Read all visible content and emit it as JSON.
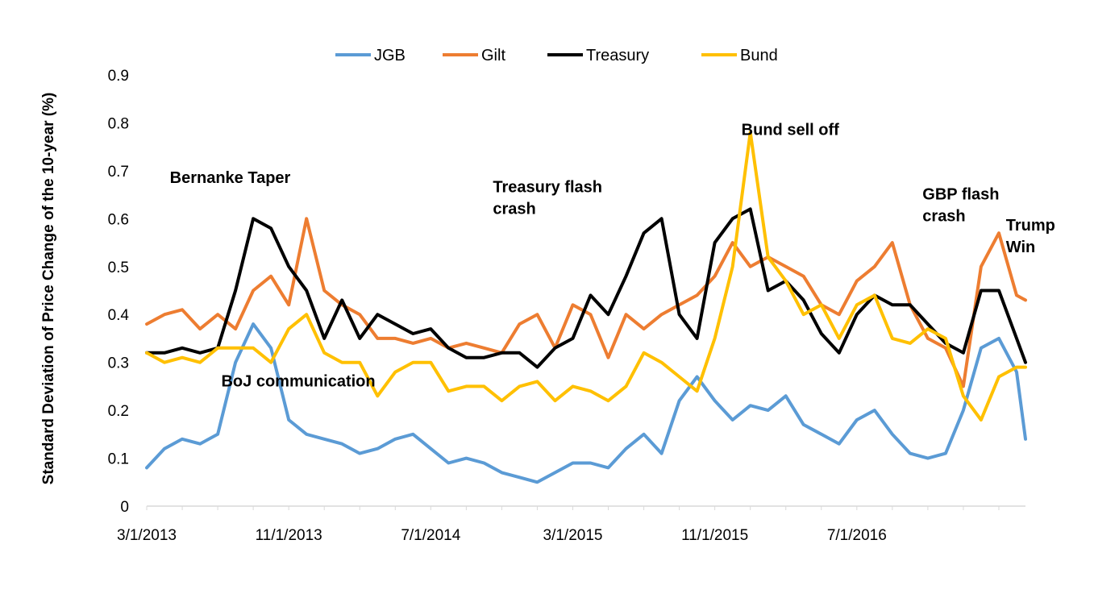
{
  "chart_data": {
    "type": "line",
    "title": "",
    "xlabel": "",
    "ylabel": "Standard Deviation of Price Change of the 10-year (%)",
    "ylim": [
      0,
      0.9
    ],
    "yticks": [
      0,
      0.1,
      0.2,
      0.3,
      0.4,
      0.5,
      0.6,
      0.7,
      0.8,
      0.9
    ],
    "ytick_labels": [
      "0",
      "0.1",
      "0.2",
      "0.3",
      "0.4",
      "0.5",
      "0.6",
      "0.7",
      "0.8",
      "0.9"
    ],
    "xlim": [
      0,
      49.5
    ],
    "xticks": [
      0,
      8,
      16,
      24,
      32,
      40
    ],
    "xtick_labels": [
      "3/1/2013",
      "11/1/2013",
      "7/1/2014",
      "3/1/2015",
      "11/1/2015",
      "7/1/2016"
    ],
    "x_unit": "months since 3/1/2013",
    "legend_position": "top",
    "grid": false,
    "x": [
      0,
      1,
      2,
      3,
      4,
      5,
      6,
      7,
      8,
      9,
      10,
      11,
      12,
      13,
      14,
      15,
      16,
      17,
      18,
      19,
      20,
      21,
      22,
      23,
      24,
      25,
      26,
      27,
      28,
      29,
      30,
      31,
      32,
      33,
      34,
      35,
      36,
      37,
      38,
      39,
      40,
      41,
      42,
      43,
      44,
      45,
      46,
      47,
      48,
      49,
      49.5
    ],
    "series": [
      {
        "name": "JGB",
        "color": "#5B9BD5",
        "values": [
          0.08,
          0.12,
          0.14,
          0.13,
          0.15,
          0.3,
          0.38,
          0.33,
          0.18,
          0.15,
          0.14,
          0.13,
          0.11,
          0.12,
          0.14,
          0.15,
          0.12,
          0.09,
          0.1,
          0.09,
          0.07,
          0.06,
          0.05,
          0.07,
          0.09,
          0.09,
          0.08,
          0.12,
          0.15,
          0.11,
          0.22,
          0.27,
          0.22,
          0.18,
          0.21,
          0.2,
          0.23,
          0.17,
          0.15,
          0.13,
          0.18,
          0.2,
          0.15,
          0.11,
          0.1,
          0.11,
          0.2,
          0.33,
          0.35,
          0.28,
          0.14
        ]
      },
      {
        "name": "Gilt",
        "color": "#ED7D31",
        "values": [
          0.38,
          0.4,
          0.41,
          0.37,
          0.4,
          0.37,
          0.45,
          0.48,
          0.42,
          0.6,
          0.45,
          0.42,
          0.4,
          0.35,
          0.35,
          0.34,
          0.35,
          0.33,
          0.34,
          0.33,
          0.32,
          0.38,
          0.4,
          0.33,
          0.42,
          0.4,
          0.31,
          0.4,
          0.37,
          0.4,
          0.42,
          0.44,
          0.48,
          0.55,
          0.5,
          0.52,
          0.5,
          0.48,
          0.42,
          0.4,
          0.47,
          0.5,
          0.55,
          0.42,
          0.35,
          0.33,
          0.25,
          0.5,
          0.57,
          0.44,
          0.43
        ]
      },
      {
        "name": "Treasury",
        "color": "#000000",
        "values": [
          0.32,
          0.32,
          0.33,
          0.32,
          0.33,
          0.45,
          0.6,
          0.58,
          0.5,
          0.45,
          0.35,
          0.43,
          0.35,
          0.4,
          0.38,
          0.36,
          0.37,
          0.33,
          0.31,
          0.31,
          0.32,
          0.32,
          0.29,
          0.33,
          0.35,
          0.44,
          0.4,
          0.48,
          0.57,
          0.6,
          0.4,
          0.35,
          0.55,
          0.6,
          0.62,
          0.45,
          0.47,
          0.43,
          0.36,
          0.32,
          0.4,
          0.44,
          0.42,
          0.42,
          0.38,
          0.34,
          0.32,
          0.45,
          0.45,
          0.35,
          0.3
        ]
      },
      {
        "name": "Bund",
        "color": "#FFC000",
        "values": [
          0.32,
          0.3,
          0.31,
          0.3,
          0.33,
          0.33,
          0.33,
          0.3,
          0.37,
          0.4,
          0.32,
          0.3,
          0.3,
          0.23,
          0.28,
          0.3,
          0.3,
          0.24,
          0.25,
          0.25,
          0.22,
          0.25,
          0.26,
          0.22,
          0.25,
          0.24,
          0.22,
          0.25,
          0.32,
          0.3,
          0.27,
          0.24,
          0.35,
          0.5,
          0.78,
          0.52,
          0.47,
          0.4,
          0.42,
          0.35,
          0.42,
          0.44,
          0.35,
          0.34,
          0.37,
          0.35,
          0.23,
          0.18,
          0.27,
          0.29,
          0.29
        ]
      }
    ],
    "annotations": [
      {
        "text": "Bernanke Taper",
        "x": 1.3,
        "y": 0.675
      },
      {
        "text": "BoJ communication",
        "x": 4.2,
        "y": 0.25
      },
      {
        "text": "Treasury flash",
        "x": 19.5,
        "y": 0.655
      },
      {
        "text": "crash",
        "x": 19.5,
        "y": 0.61
      },
      {
        "text": "Bund sell off",
        "x": 33.5,
        "y": 0.775
      },
      {
        "text": "GBP flash",
        "x": 43.7,
        "y": 0.64
      },
      {
        "text": "crash",
        "x": 43.7,
        "y": 0.595
      },
      {
        "text": "Trump",
        "x": 48.4,
        "y": 0.575
      },
      {
        "text": "Win",
        "x": 48.4,
        "y": 0.53
      }
    ]
  }
}
